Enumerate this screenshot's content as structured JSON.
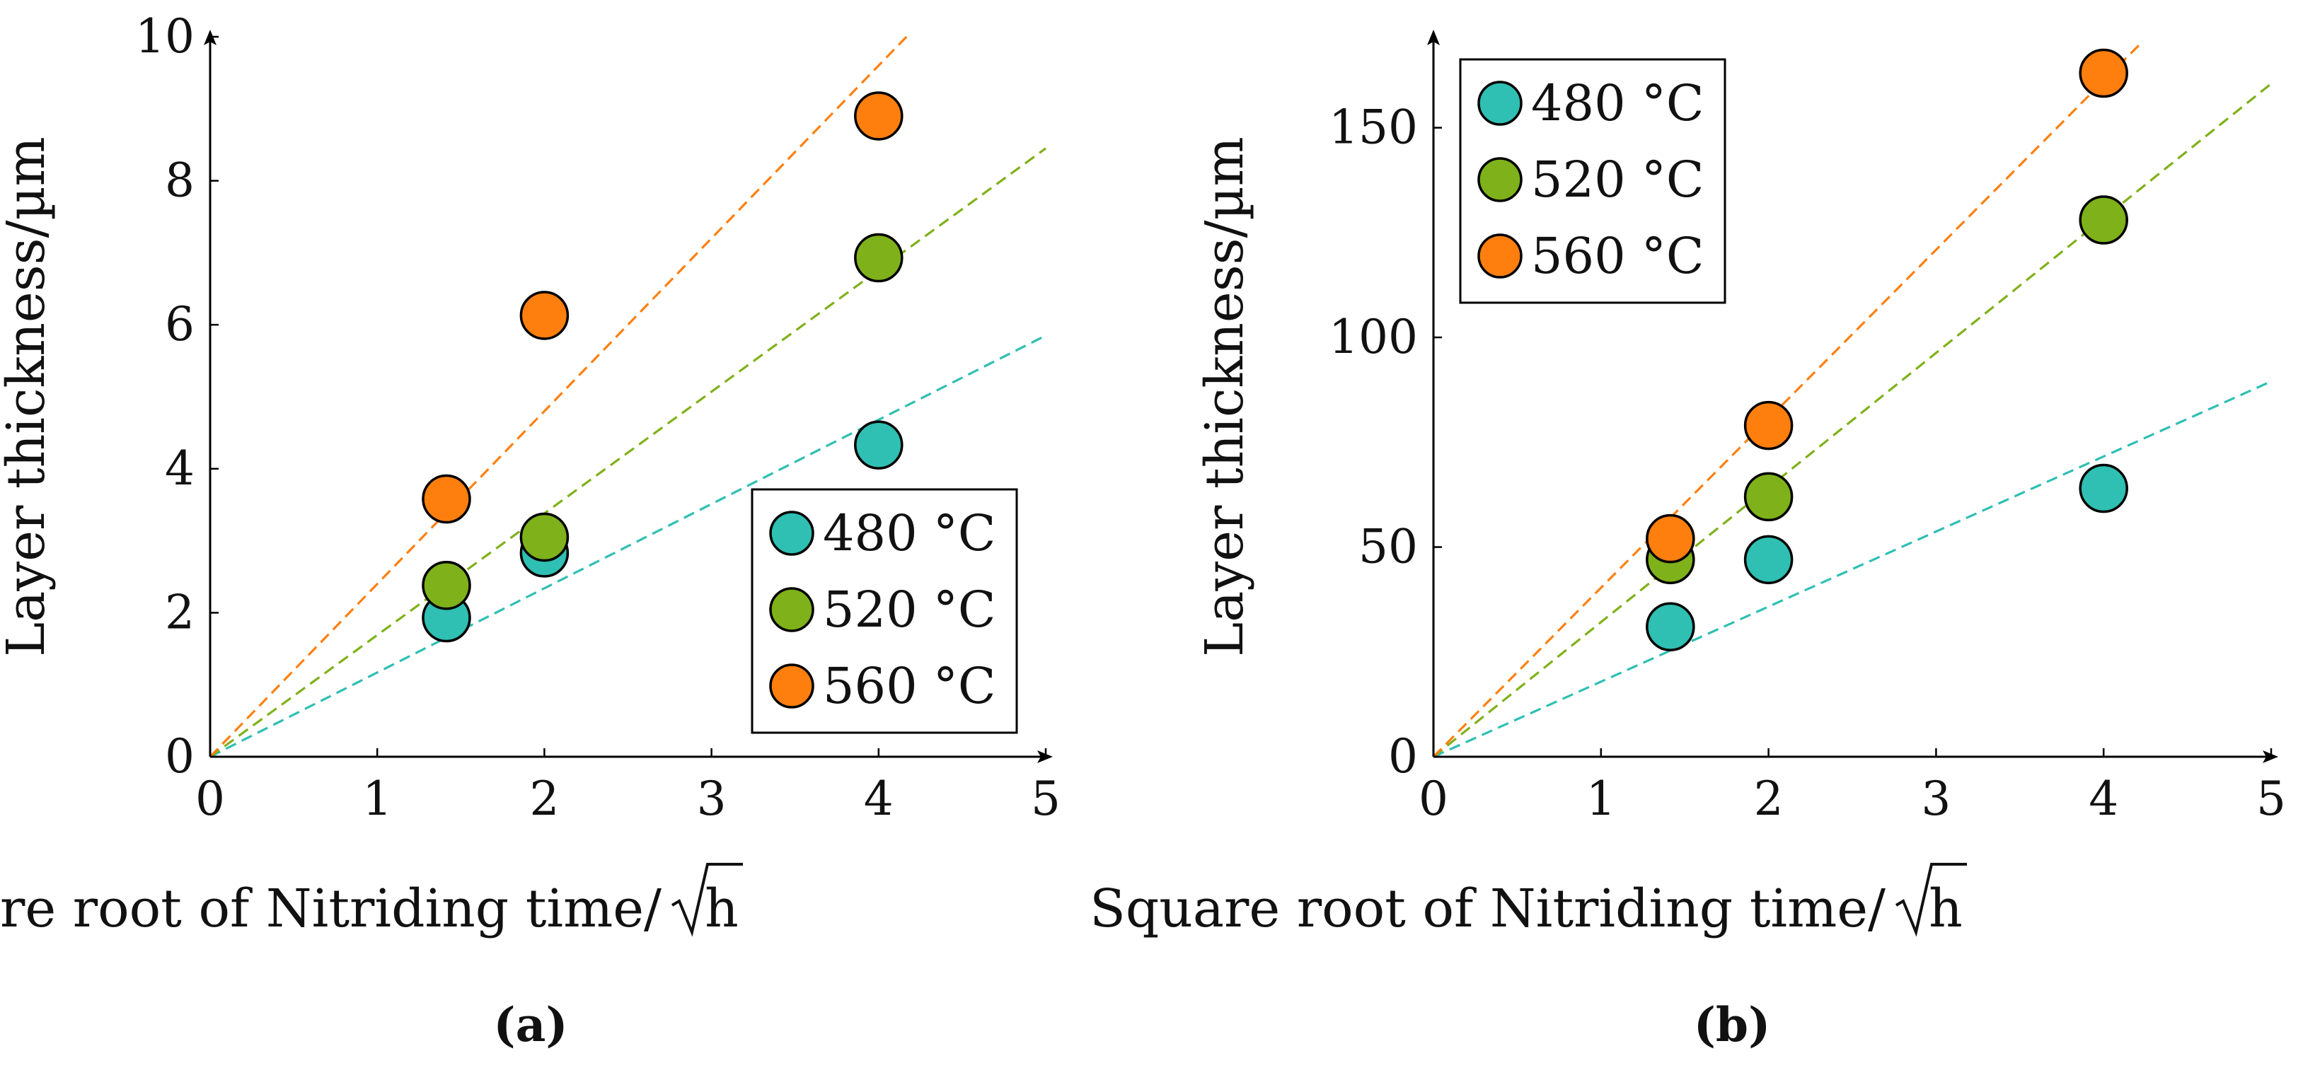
{
  "chart_data": [
    {
      "type": "scatter",
      "panel_label": "(a)",
      "xlabel": "Square root of Nitriding time/",
      "xlabel_unit": "h",
      "ylabel": "Layer thickness/µm",
      "xlim": [
        0,
        5
      ],
      "ylim": [
        0,
        10
      ],
      "xticks": [
        "0",
        "1",
        "2",
        "3",
        "4",
        "5"
      ],
      "yticks": [
        "0",
        "2",
        "4",
        "6",
        "8",
        "10"
      ],
      "legend_position": "lower-right",
      "series": [
        {
          "name": "480 °C",
          "color": "#2fbfb3",
          "x": [
            1.414,
            2,
            4
          ],
          "y": [
            1.93,
            2.83,
            4.33
          ],
          "fit_slope": 1.17
        },
        {
          "name": "520 °C",
          "color": "#7fb11a",
          "x": [
            1.414,
            2,
            4
          ],
          "y": [
            2.38,
            3.05,
            6.93
          ],
          "fit_slope": 1.69
        },
        {
          "name": "560 °C",
          "color": "#ff7f0e",
          "x": [
            1.414,
            2,
            4
          ],
          "y": [
            3.58,
            6.13,
            8.9
          ],
          "fit_slope": 2.4
        }
      ]
    },
    {
      "type": "scatter",
      "panel_label": "(b)",
      "xlabel": "Square root of Nitriding time/",
      "xlabel_unit": "h",
      "ylabel": "Layer thickness/µm",
      "xlim": [
        0,
        5
      ],
      "ylim": [
        0,
        170
      ],
      "xticks": [
        "0",
        "1",
        "2",
        "3",
        "4",
        "5"
      ],
      "yticks": [
        "0",
        "50",
        "100",
        "150"
      ],
      "legend_position": "upper-left",
      "series": [
        {
          "name": "480 °C",
          "color": "#2fbfb3",
          "x": [
            1.414,
            2,
            4
          ],
          "y": [
            31,
            47,
            64
          ],
          "fit_slope": 17.9
        },
        {
          "name": "520 °C",
          "color": "#7fb11a",
          "x": [
            1.414,
            2,
            4
          ],
          "y": [
            47,
            62,
            128
          ],
          "fit_slope": 32.1
        },
        {
          "name": "560 °C",
          "color": "#ff7f0e",
          "x": [
            1.414,
            2,
            4
          ],
          "y": [
            52,
            79,
            163
          ],
          "fit_slope": 40.3
        }
      ]
    }
  ]
}
